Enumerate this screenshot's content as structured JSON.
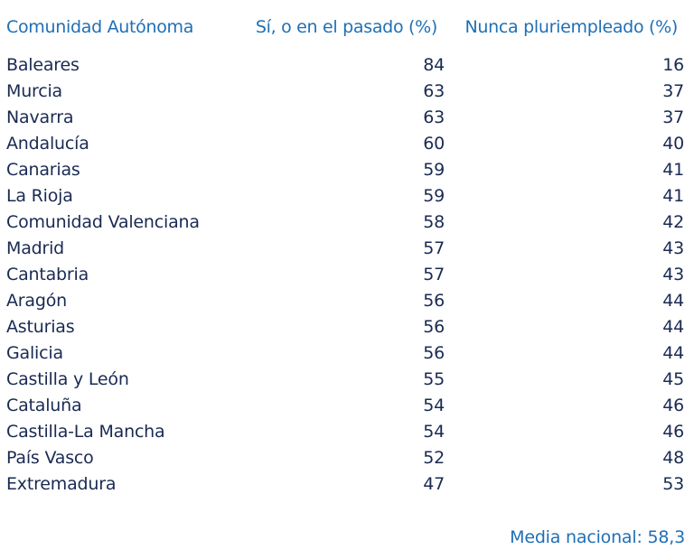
{
  "table": {
    "headers": {
      "region": "Comunidad Autónoma",
      "yes_or_past": "Sí, o en el pasado (%)",
      "never": "Nunca pluriempleado (%)"
    },
    "rows": [
      {
        "region": "Baleares",
        "yes_or_past": "84",
        "never": "16"
      },
      {
        "region": "Murcia",
        "yes_or_past": "63",
        "never": "37"
      },
      {
        "region": "Navarra",
        "yes_or_past": "63",
        "never": "37"
      },
      {
        "region": "Andalucía",
        "yes_or_past": "60",
        "never": "40"
      },
      {
        "region": "Canarias",
        "yes_or_past": "59",
        "never": "41"
      },
      {
        "region": "La Rioja",
        "yes_or_past": "59",
        "never": "41"
      },
      {
        "region": "Comunidad Valenciana",
        "yes_or_past": "58",
        "never": "42"
      },
      {
        "region": "Madrid",
        "yes_or_past": "57",
        "never": "43"
      },
      {
        "region": "Cantabria",
        "yes_or_past": "57",
        "never": "43"
      },
      {
        "region": "Aragón",
        "yes_or_past": "56",
        "never": "44"
      },
      {
        "region": "Asturias",
        "yes_or_past": "56",
        "never": "44"
      },
      {
        "region": "Galicia",
        "yes_or_past": "56",
        "never": "44"
      },
      {
        "region": "Castilla y León",
        "yes_or_past": "55",
        "never": "45"
      },
      {
        "region": "Cataluña",
        "yes_or_past": "54",
        "never": "46"
      },
      {
        "region": "Castilla-La Mancha",
        "yes_or_past": "54",
        "never": "46"
      },
      {
        "region": "País Vasco",
        "yes_or_past": "52",
        "never": "48"
      },
      {
        "region": "Extremadura",
        "yes_or_past": "47",
        "never": "53"
      }
    ]
  },
  "footer": {
    "national_average": "Media nacional: 58,3"
  },
  "colors": {
    "header": "#1f6fb5",
    "body_text": "#1a2a52",
    "background": "#ffffff"
  }
}
